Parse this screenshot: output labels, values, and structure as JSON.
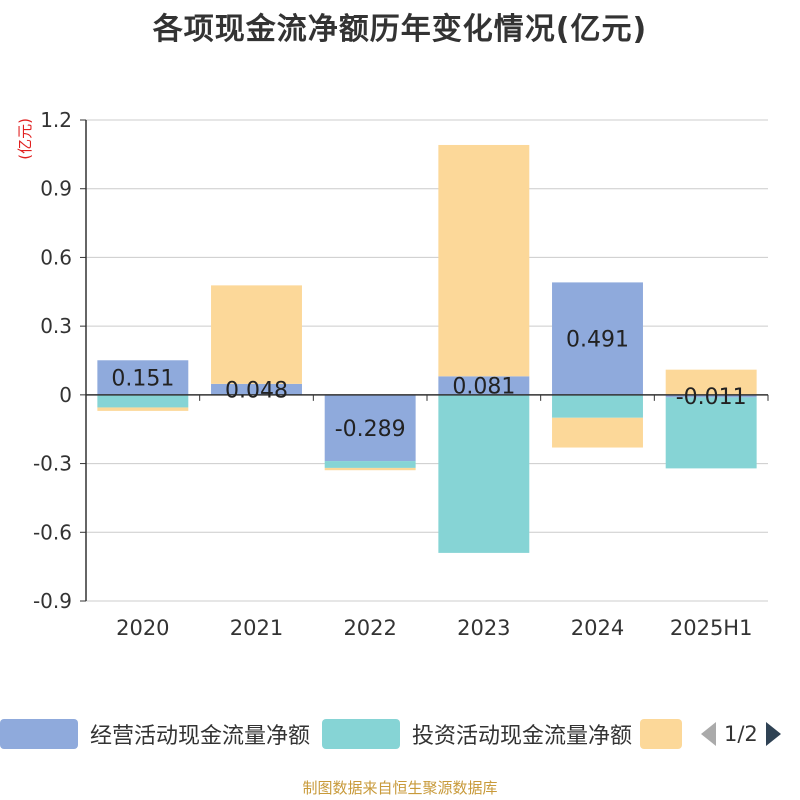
{
  "title": "各项现金流净额历年变化情况(亿元)",
  "unit_label": "(亿元)",
  "colors": {
    "operating": "#8faadc",
    "investing": "#86d4d5",
    "financing": "#fcd899",
    "axis": "#333333",
    "grid": "#cccccc",
    "unit": "#e02020",
    "source": "#c89a3a",
    "pager_active": "#2f4254",
    "pager_inactive": "#aaaaaa"
  },
  "legend": {
    "items": [
      {
        "label": "经营活动现金流量净额",
        "color": "#8faadc"
      },
      {
        "label": "投资活动现金流量净额",
        "color": "#86d4d5"
      },
      {
        "label": "",
        "color": "#fcd899"
      }
    ],
    "page": "1/2"
  },
  "source": "制图数据来自恒生聚源数据库",
  "chart_data": {
    "type": "bar",
    "stacked": true,
    "categories": [
      "2020",
      "2021",
      "2022",
      "2023",
      "2024",
      "2025H1"
    ],
    "series": [
      {
        "name": "经营活动现金流量净额",
        "values": [
          0.151,
          0.048,
          -0.289,
          0.081,
          0.491,
          -0.011
        ]
      },
      {
        "name": "投资活动现金流量净额",
        "values": [
          -0.055,
          0.0,
          -0.03,
          -0.69,
          -0.1,
          -0.31
        ]
      },
      {
        "values": [
          -0.015,
          0.43,
          -0.01,
          1.01,
          -0.13,
          0.11
        ]
      }
    ],
    "data_labels": [
      "0.151",
      "0.048",
      "-0.289",
      "0.081",
      "0.491",
      "-0.011"
    ],
    "ylim": [
      -0.9,
      1.2
    ],
    "yticks": [
      "1.2",
      "0.9",
      "0.6",
      "0.3",
      "0",
      "-0.3",
      "-0.6",
      "-0.9"
    ],
    "grid": true,
    "legend_position": "bottom"
  }
}
